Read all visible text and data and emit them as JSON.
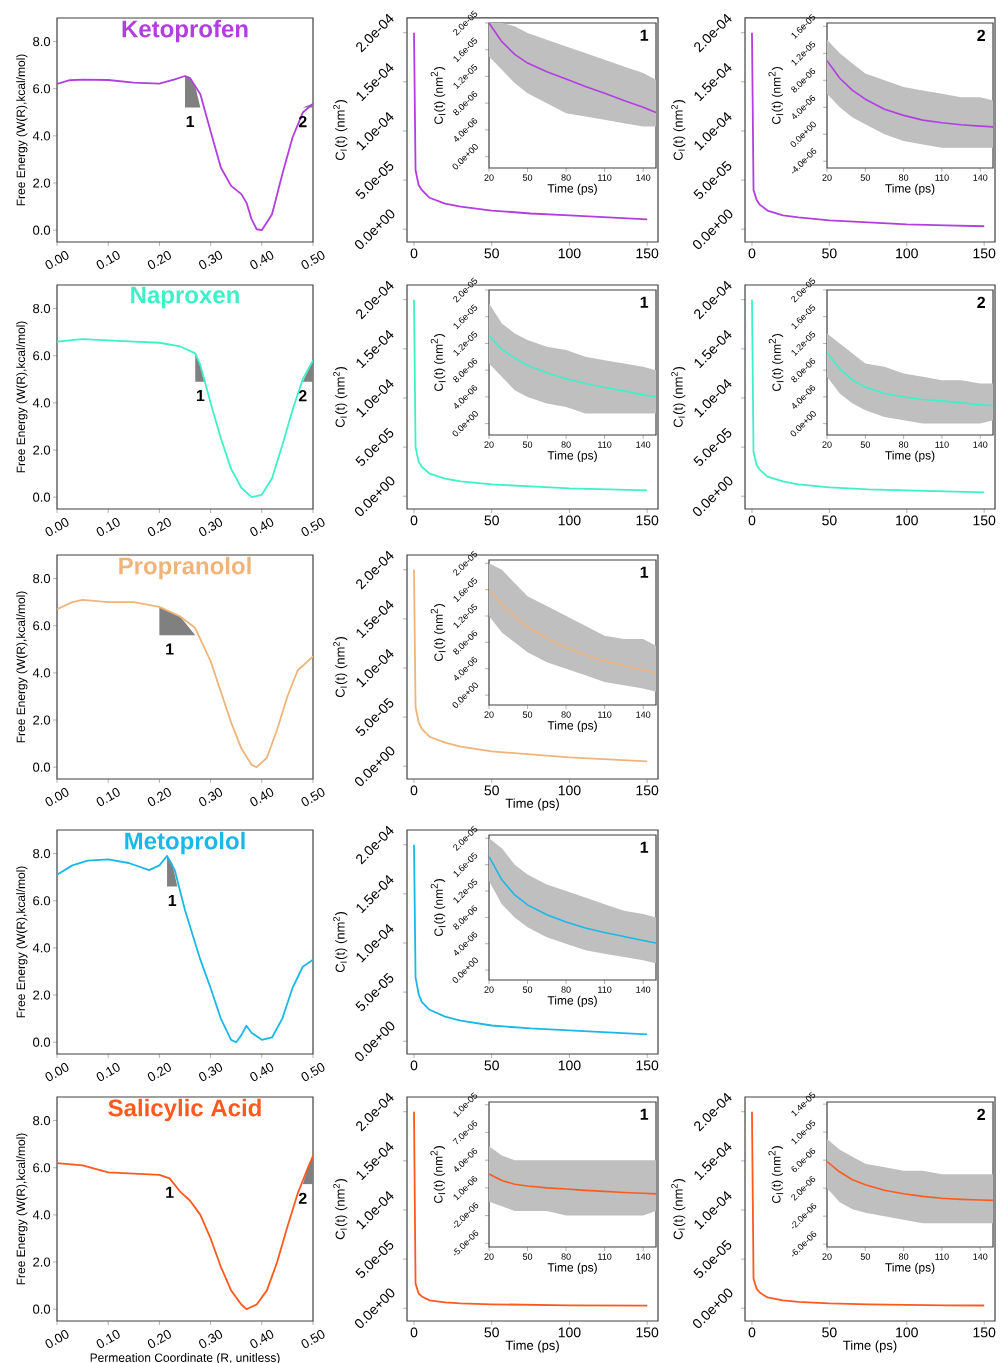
{
  "chart_data": [
    {
      "type": "line",
      "title": "Ketoprofen",
      "ylabel": "Free Energy (W(R),kcal/mol)",
      "xlim": [
        0,
        0.5
      ],
      "ylim": [
        -0.5,
        9.0
      ],
      "xticks": [
        {
          "value": 0,
          "label": "0.00"
        },
        {
          "value": 0.1,
          "label": "0.10"
        },
        {
          "value": 0.2,
          "label": "0.20"
        },
        {
          "value": 0.3,
          "label": "0.30"
        },
        {
          "value": 0.4,
          "label": "0.40"
        },
        {
          "value": 0.5,
          "label": "0.50"
        }
      ],
      "yticks": [
        {
          "value": 0,
          "label": "0.0"
        },
        {
          "value": 2,
          "label": "2.0"
        },
        {
          "value": 4,
          "label": "4.0"
        },
        {
          "value": 6,
          "label": "6.0"
        },
        {
          "value": 8,
          "label": "8.0"
        }
      ],
      "annotations": [
        {
          "text": "1",
          "x": 0.26,
          "y": 5.2
        },
        {
          "text": "2",
          "x": 0.48,
          "y": 5.2
        }
      ],
      "series": [
        {
          "type": "area",
          "color": "#808080",
          "x": [
            0.25,
            0.26,
            0.27,
            0.28,
            0.26,
            0.25
          ],
          "values": [
            6.54,
            6.45,
            6.1,
            5.2,
            5.2,
            5.2
          ]
        },
        {
          "type": "area",
          "color": "#808080",
          "x": [
            0.48,
            0.5,
            0.5
          ],
          "values": [
            5.2,
            5.37,
            5.2
          ]
        },
        {
          "color": "#b23ee0",
          "x": [
            0,
            0.025,
            0.05,
            0.1,
            0.15,
            0.2,
            0.23,
            0.25,
            0.26,
            0.28,
            0.3,
            0.32,
            0.34,
            0.36,
            0.37,
            0.38,
            0.39,
            0.4,
            0.42,
            0.44,
            0.46,
            0.48,
            0.5
          ],
          "values": [
            6.2,
            6.36,
            6.39,
            6.37,
            6.26,
            6.22,
            6.4,
            6.54,
            6.45,
            5.77,
            4.2,
            2.66,
            1.88,
            1.53,
            1.17,
            0.47,
            0.04,
            0,
            0.68,
            2.37,
            3.93,
            4.99,
            5.37
          ]
        }
      ]
    },
    {
      "type": "line",
      "ylabel": "C$_{I}$(t) (nm$^{2}$)",
      "xlim": [
        -4.5,
        157
      ],
      "ylim": [
        -1.3e-05,
        0.000215
      ],
      "xticks": [
        0,
        50,
        100,
        150
      ],
      "yticks": [
        {
          "value": 0,
          "label": "0.0e+00"
        },
        {
          "value": 5e-05,
          "label": "5.0e-05"
        },
        {
          "value": 0.0001,
          "label": "1.0e-04"
        },
        {
          "value": 0.00015,
          "label": "1.5e-04"
        },
        {
          "value": 0.0002,
          "label": "2.0e-04"
        }
      ],
      "series": [
        {
          "color": "#b23ee0",
          "x": [
            0,
            1,
            3,
            5,
            10,
            20,
            30,
            50,
            75,
            100,
            125,
            150
          ],
          "values": [
            0.0002,
            6e-05,
            4.5e-05,
            4e-05,
            3.2e-05,
            2.6e-05,
            2.3e-05,
            1.9e-05,
            1.6e-05,
            1.4e-05,
            1.2e-05,
            1e-05
          ]
        }
      ]
    },
    {
      "type": "line",
      "xlabel": "Time (ps)",
      "ylabel": "C$_{I}$(t) (nm$^{2}$)",
      "xlim": [
        20,
        150
      ],
      "ylim": [
        -1.7e-06,
        2e-05
      ],
      "xticks": [
        20,
        50,
        80,
        110,
        140
      ],
      "yticks": [
        {
          "value": 0,
          "label": "0.0e+00"
        },
        {
          "value": 4e-06,
          "label": "4.0e-06"
        },
        {
          "value": 8e-06,
          "label": "8.0e-06"
        },
        {
          "value": 1.2e-05,
          "label": "1.2e-05"
        },
        {
          "value": 1.6e-05,
          "label": "1.6e-05"
        },
        {
          "value": 2e-05,
          "label": "2.0e-05"
        }
      ],
      "annotations": [
        "1"
      ],
      "series": [
        {
          "color": "#b23ee0",
          "x": [
            20,
            30,
            40,
            50,
            65,
            80,
            95,
            110,
            125,
            140,
            150
          ],
          "values": [
            2e-05,
            1.72e-05,
            1.53e-05,
            1.4e-05,
            1.27e-05,
            1.16e-05,
            1.05e-05,
            9.5e-06,
            8.4e-06,
            7.4e-06,
            6.6e-06
          ],
          "lower": [
            1.5e-05,
            1.3e-05,
            1.1e-05,
            9.5e-06,
            8e-06,
            6.5e-06,
            6e-06,
            5.5e-06,
            5e-06,
            4.5e-06,
            4.5e-06
          ],
          "upper": [
            2e-05,
            2e-05,
            1.95e-05,
            1.85e-05,
            1.75e-05,
            1.65e-05,
            1.55e-05,
            1.45e-05,
            1.35e-05,
            1.25e-05,
            1.15e-05
          ]
        }
      ]
    },
    {
      "type": "line",
      "ylabel": "C$_{I}$(t) (nm$^{2}$)",
      "xlim": [
        -4.5,
        157
      ],
      "ylim": [
        -1.3e-05,
        0.000215
      ],
      "xticks": [
        0,
        50,
        100,
        150
      ],
      "yticks": [
        {
          "value": 0,
          "label": "0.0e+00"
        },
        {
          "value": 5e-05,
          "label": "5.0e-05"
        },
        {
          "value": 0.0001,
          "label": "1.0e-04"
        },
        {
          "value": 0.00015,
          "label": "1.5e-04"
        },
        {
          "value": 0.0002,
          "label": "2.0e-04"
        }
      ],
      "series": [
        {
          "color": "#b23ee0",
          "x": [
            0,
            1,
            3,
            5,
            10,
            20,
            30,
            50,
            75,
            100,
            125,
            150
          ],
          "values": [
            0.0002,
            4e-05,
            3e-05,
            2.5e-05,
            1.9e-05,
            1.4e-05,
            1.2e-05,
            9e-06,
            7e-06,
            5e-06,
            4e-06,
            3e-06
          ]
        }
      ]
    },
    {
      "type": "line",
      "xlabel": "Time (ps)",
      "ylabel": "C$_{I}$(t) (nm$^{2}$)",
      "xlim": [
        20,
        150
      ],
      "ylim": [
        -5e-06,
        1.65e-05
      ],
      "xticks": [
        20,
        50,
        80,
        110,
        140
      ],
      "yticks": [
        {
          "value": -4e-06,
          "label": "-4.0e-06"
        },
        {
          "value": 0,
          "label": "0.0e+00"
        },
        {
          "value": 4e-06,
          "label": "4.0e-06"
        },
        {
          "value": 8e-06,
          "label": "8.0e-06"
        },
        {
          "value": 1.2e-05,
          "label": "1.2e-05"
        },
        {
          "value": 1.6e-05,
          "label": "1.6e-05"
        }
      ],
      "annotations": [
        "2"
      ],
      "series": [
        {
          "color": "#b23ee0",
          "x": [
            20,
            30,
            40,
            50,
            65,
            80,
            95,
            110,
            125,
            140,
            150
          ],
          "values": [
            1.09e-05,
            8.3e-06,
            6.5e-06,
            5.2e-06,
            3.7e-06,
            2.8e-06,
            2.1e-06,
            1.7e-06,
            1.4e-06,
            1.2e-06,
            1.1e-06
          ],
          "lower": [
            6e-06,
            4e-06,
            2.5e-06,
            1.5e-06,
            0,
            -1e-06,
            -1.5e-06,
            -2e-06,
            -2e-06,
            -2e-06,
            -2e-06
          ],
          "upper": [
            1.4e-05,
            1.2e-05,
            1.05e-05,
            9e-06,
            8e-06,
            7e-06,
            6.5e-06,
            6e-06,
            5.5e-06,
            5.5e-06,
            5e-06
          ]
        }
      ]
    },
    {
      "type": "line",
      "title": "Naproxen",
      "ylabel": "Free Energy (W(R),kcal/mol)",
      "xlim": [
        0,
        0.5
      ],
      "ylim": [
        -0.5,
        9.0
      ],
      "xticks": [
        {
          "value": 0,
          "label": "0.00"
        },
        {
          "value": 0.1,
          "label": "0.10"
        },
        {
          "value": 0.2,
          "label": "0.20"
        },
        {
          "value": 0.3,
          "label": "0.30"
        },
        {
          "value": 0.4,
          "label": "0.40"
        },
        {
          "value": 0.5,
          "label": "0.50"
        }
      ],
      "yticks": [
        {
          "value": 0,
          "label": "0.0"
        },
        {
          "value": 2,
          "label": "2.0"
        },
        {
          "value": 4,
          "label": "4.0"
        },
        {
          "value": 6,
          "label": "6.0"
        },
        {
          "value": 8,
          "label": "8.0"
        }
      ],
      "annotations": [
        {
          "text": "1",
          "x": 0.28,
          "y": 4.9
        },
        {
          "text": "2",
          "x": 0.48,
          "y": 4.9
        }
      ],
      "series": [
        {
          "type": "area",
          "color": "#808080",
          "x": [
            0.27,
            0.28,
            0.29,
            0.28,
            0.27
          ],
          "values": [
            6.1,
            5.6,
            4.9,
            4.9,
            4.9
          ]
        },
        {
          "type": "area",
          "color": "#808080",
          "x": [
            0.48,
            0.5,
            0.5
          ],
          "values": [
            4.9,
            5.8,
            4.9
          ]
        },
        {
          "color": "#3ef0c8",
          "x": [
            0,
            0.05,
            0.1,
            0.15,
            0.2,
            0.24,
            0.27,
            0.28,
            0.3,
            0.32,
            0.34,
            0.36,
            0.38,
            0.4,
            0.42,
            0.44,
            0.46,
            0.48,
            0.5
          ],
          "values": [
            6.6,
            6.7,
            6.65,
            6.6,
            6.55,
            6.4,
            6.1,
            5.6,
            4.0,
            2.5,
            1.2,
            0.4,
            0.0,
            0.1,
            0.8,
            2.2,
            3.7,
            5.0,
            5.8
          ]
        }
      ]
    },
    {
      "type": "line",
      "ylabel": "C$_{I}$(t) (nm$^{2}$)",
      "xlim": [
        -4.5,
        157
      ],
      "ylim": [
        -1.3e-05,
        0.000215
      ],
      "xticks": [
        0,
        50,
        100,
        150
      ],
      "yticks": [
        {
          "value": 0,
          "label": "0.0e+00"
        },
        {
          "value": 5e-05,
          "label": "5.0e-05"
        },
        {
          "value": 0.0001,
          "label": "1.0e-04"
        },
        {
          "value": 0.00015,
          "label": "1.5e-04"
        },
        {
          "value": 0.0002,
          "label": "2.0e-04"
        }
      ],
      "series": [
        {
          "color": "#3ef0c8",
          "x": [
            0,
            1,
            3,
            5,
            10,
            20,
            30,
            50,
            75,
            100,
            125,
            150
          ],
          "values": [
            0.0002,
            5e-05,
            3.5e-05,
            3e-05,
            2.3e-05,
            1.8e-05,
            1.5e-05,
            1.2e-05,
            1e-05,
            8e-06,
            7e-06,
            6e-06
          ]
        }
      ]
    },
    {
      "type": "line",
      "xlabel": "Time (ps)",
      "ylabel": "C$_{I}$(t) (nm$^{2}$)",
      "xlim": [
        20,
        150
      ],
      "ylim": [
        -1.7e-06,
        2e-05
      ],
      "xticks": [
        20,
        50,
        80,
        110,
        140
      ],
      "yticks": [
        {
          "value": 0,
          "label": "0.0e+00"
        },
        {
          "value": 4e-06,
          "label": "4.0e-06"
        },
        {
          "value": 8e-06,
          "label": "8.0e-06"
        },
        {
          "value": 1.2e-05,
          "label": "1.2e-05"
        },
        {
          "value": 1.6e-05,
          "label": "1.6e-05"
        },
        {
          "value": 2e-05,
          "label": "2.0e-05"
        }
      ],
      "annotations": [
        "1"
      ],
      "series": [
        {
          "color": "#3ef0c8",
          "x": [
            20,
            30,
            40,
            50,
            65,
            80,
            95,
            110,
            125,
            140,
            150
          ],
          "values": [
            1.32e-05,
            1.11e-05,
            9.8e-06,
            8.7e-06,
            7.6e-06,
            6.7e-06,
            6e-06,
            5.4e-06,
            4.9e-06,
            4.3e-06,
            4e-06
          ],
          "lower": [
            9e-06,
            7e-06,
            5e-06,
            4e-06,
            3e-06,
            2.5e-06,
            1.5e-06,
            1.5e-06,
            1.5e-06,
            1.5e-06,
            1.5e-06
          ],
          "upper": [
            1.8e-05,
            1.5e-05,
            1.35e-05,
            1.25e-05,
            1.15e-05,
            1.1e-05,
            1e-05,
            9.5e-06,
            9e-06,
            8.5e-06,
            8e-06
          ]
        }
      ]
    },
    {
      "type": "line",
      "ylabel": "C$_{I}$(t) (nm$^{2}$)",
      "xlim": [
        -4.5,
        157
      ],
      "ylim": [
        -1.3e-05,
        0.000215
      ],
      "xticks": [
        0,
        50,
        100,
        150
      ],
      "yticks": [
        {
          "value": 0,
          "label": "0.0e+00"
        },
        {
          "value": 5e-05,
          "label": "5.0e-05"
        },
        {
          "value": 0.0001,
          "label": "1.0e-04"
        },
        {
          "value": 0.00015,
          "label": "1.5e-04"
        },
        {
          "value": 0.0002,
          "label": "2.0e-04"
        }
      ],
      "series": [
        {
          "color": "#3ef0c8",
          "x": [
            0,
            1,
            3,
            5,
            10,
            20,
            30,
            50,
            75,
            100,
            125,
            150
          ],
          "values": [
            0.0002,
            4.5e-05,
            3.2e-05,
            2.7e-05,
            2e-05,
            1.5e-05,
            1.2e-05,
            9e-06,
            7e-06,
            6e-06,
            5e-06,
            4e-06
          ]
        }
      ]
    },
    {
      "type": "line",
      "xlabel": "Time (ps)",
      "ylabel": "C$_{I}$(t) (nm$^{2}$)",
      "xlim": [
        20,
        150
      ],
      "ylim": [
        -1.7e-06,
        2e-05
      ],
      "xticks": [
        20,
        50,
        80,
        110,
        140
      ],
      "yticks": [
        {
          "value": 0,
          "label": "0.0e+00"
        },
        {
          "value": 4e-06,
          "label": "4.0e-06"
        },
        {
          "value": 8e-06,
          "label": "8.0e-06"
        },
        {
          "value": 1.2e-05,
          "label": "1.2e-05"
        },
        {
          "value": 1.6e-05,
          "label": "1.6e-05"
        },
        {
          "value": 2e-05,
          "label": "2.0e-05"
        }
      ],
      "annotations": [
        "2"
      ],
      "series": [
        {
          "color": "#3ef0c8",
          "x": [
            20,
            30,
            40,
            50,
            65,
            80,
            95,
            110,
            125,
            140,
            150
          ],
          "values": [
            1.06e-05,
            8.2e-06,
            6.5e-06,
            5.5e-06,
            4.5e-06,
            4e-06,
            3.6e-06,
            3.4e-06,
            3.1e-06,
            2.8e-06,
            2.7e-06
          ],
          "lower": [
            7e-06,
            4.5e-06,
            3e-06,
            2e-06,
            1e-06,
            5e-07,
            0,
            0,
            0,
            0,
            5e-07
          ],
          "upper": [
            1.35e-05,
            1.2e-05,
            1.05e-05,
            9e-06,
            8.5e-06,
            7.5e-06,
            7e-06,
            6.5e-06,
            6.5e-06,
            6e-06,
            6e-06
          ]
        }
      ]
    },
    {
      "type": "line",
      "title": "Propranolol",
      "ylabel": "Free Energy (W(R),kcal/mol)",
      "xlim": [
        0,
        0.5
      ],
      "ylim": [
        -0.5,
        9.0
      ],
      "xticks": [
        {
          "value": 0,
          "label": "0.00"
        },
        {
          "value": 0.1,
          "label": "0.10"
        },
        {
          "value": 0.2,
          "label": "0.20"
        },
        {
          "value": 0.3,
          "label": "0.30"
        },
        {
          "value": 0.4,
          "label": "0.40"
        },
        {
          "value": 0.5,
          "label": "0.50"
        }
      ],
      "yticks": [
        {
          "value": 0,
          "label": "0.0"
        },
        {
          "value": 2,
          "label": "2.0"
        },
        {
          "value": 4,
          "label": "4.0"
        },
        {
          "value": 6,
          "label": "6.0"
        },
        {
          "value": 8,
          "label": "8.0"
        }
      ],
      "annotations": [
        {
          "text": "1",
          "x": 0.22,
          "y": 5.6
        }
      ],
      "series": [
        {
          "type": "area",
          "color": "#808080",
          "x": [
            0.2,
            0.24,
            0.27,
            0.22,
            0.2
          ],
          "values": [
            6.8,
            6.4,
            5.6,
            5.6,
            5.6
          ]
        },
        {
          "color": "#f0b47a",
          "x": [
            0,
            0.03,
            0.05,
            0.1,
            0.15,
            0.2,
            0.24,
            0.27,
            0.3,
            0.32,
            0.34,
            0.36,
            0.38,
            0.39,
            0.41,
            0.43,
            0.45,
            0.47,
            0.5
          ],
          "values": [
            6.7,
            7.0,
            7.1,
            7.0,
            7.0,
            6.8,
            6.4,
            5.9,
            4.5,
            3.2,
            1.9,
            0.8,
            0.1,
            0.0,
            0.4,
            1.6,
            3.0,
            4.1,
            4.7
          ]
        }
      ]
    },
    {
      "type": "line",
      "xlabel": "Time (ps)",
      "ylabel": "C$_{I}$(t) (nm$^{2}$)",
      "xlim": [
        -4.5,
        157
      ],
      "ylim": [
        -1.3e-05,
        0.000215
      ],
      "xticks": [
        0,
        50,
        100,
        150
      ],
      "yticks": [
        {
          "value": 0,
          "label": "0.0e+00"
        },
        {
          "value": 5e-05,
          "label": "5.0e-05"
        },
        {
          "value": 0.0001,
          "label": "1.0e-04"
        },
        {
          "value": 0.00015,
          "label": "1.5e-04"
        },
        {
          "value": 0.0002,
          "label": "2.0e-04"
        }
      ],
      "series": [
        {
          "color": "#f0b47a",
          "x": [
            0,
            1,
            3,
            5,
            10,
            20,
            30,
            50,
            75,
            100,
            125,
            150
          ],
          "values": [
            0.0002,
            6e-05,
            4.5e-05,
            3.8e-05,
            3e-05,
            2.4e-05,
            2e-05,
            1.5e-05,
            1.2e-05,
            9e-06,
            7e-06,
            5e-06
          ]
        }
      ]
    },
    {
      "type": "line",
      "xlabel": "Time (ps)",
      "ylabel": "C$_{I}$(t) (nm$^{2}$)",
      "xlim": [
        20,
        150
      ],
      "ylim": [
        -1.5e-06,
        2.05e-05
      ],
      "xticks": [
        20,
        50,
        80,
        110,
        140
      ],
      "yticks": [
        {
          "value": 0,
          "label": "0.0e+00"
        },
        {
          "value": 4e-06,
          "label": "4.0e-06"
        },
        {
          "value": 8e-06,
          "label": "8.0e-06"
        },
        {
          "value": 1.2e-05,
          "label": "1.2e-05"
        },
        {
          "value": 1.6e-05,
          "label": "1.6e-05"
        },
        {
          "value": 2e-05,
          "label": "2.0e-05"
        }
      ],
      "annotations": [
        "1"
      ],
      "series": [
        {
          "color": "#f0b47a",
          "x": [
            20,
            30,
            40,
            50,
            65,
            80,
            95,
            110,
            125,
            140,
            150
          ],
          "values": [
            1.6e-05,
            1.37e-05,
            1.19e-05,
            1.04e-05,
            8.6e-06,
            7.2e-06,
            6.1e-06,
            5.2e-06,
            4.5e-06,
            3.8e-06,
            3.4e-06
          ],
          "lower": [
            1.2e-05,
            9.5e-06,
            8e-06,
            6.5e-06,
            5e-06,
            4e-06,
            3e-06,
            2e-06,
            1.5e-06,
            1e-06,
            5e-07
          ],
          "upper": [
            2e-05,
            1.9e-05,
            1.7e-05,
            1.5e-05,
            1.35e-05,
            1.2e-05,
            1.05e-05,
            9e-06,
            8.5e-06,
            8.5e-06,
            7.5e-06
          ]
        }
      ]
    },
    {
      "type": "line",
      "title": "Metoprolol",
      "ylabel": "Free Energy (W(R),kcal/mol)",
      "xlim": [
        0,
        0.5
      ],
      "ylim": [
        -0.5,
        9.0
      ],
      "xticks": [
        {
          "value": 0,
          "label": "0.00"
        },
        {
          "value": 0.1,
          "label": "0.10"
        },
        {
          "value": 0.2,
          "label": "0.20"
        },
        {
          "value": 0.3,
          "label": "0.30"
        },
        {
          "value": 0.4,
          "label": "0.40"
        },
        {
          "value": 0.5,
          "label": "0.50"
        }
      ],
      "yticks": [
        {
          "value": 0,
          "label": "0.0"
        },
        {
          "value": 2,
          "label": "2.0"
        },
        {
          "value": 4,
          "label": "4.0"
        },
        {
          "value": 6,
          "label": "6.0"
        },
        {
          "value": 8,
          "label": "8.0"
        }
      ],
      "annotations": [
        {
          "text": "1",
          "x": 0.225,
          "y": 6.6
        }
      ],
      "series": [
        {
          "type": "area",
          "color": "#808080",
          "x": [
            0.215,
            0.225,
            0.235,
            0.225,
            0.215
          ],
          "values": [
            7.9,
            7.6,
            6.6,
            6.6,
            6.6
          ]
        },
        {
          "color": "#1ab8e8",
          "x": [
            0,
            0.03,
            0.06,
            0.1,
            0.14,
            0.18,
            0.2,
            0.215,
            0.23,
            0.25,
            0.28,
            0.3,
            0.32,
            0.34,
            0.35,
            0.36,
            0.37,
            0.38,
            0.4,
            0.42,
            0.44,
            0.46,
            0.48,
            0.5
          ],
          "values": [
            7.1,
            7.5,
            7.7,
            7.75,
            7.6,
            7.3,
            7.5,
            7.9,
            7.3,
            5.6,
            3.5,
            2.3,
            1.0,
            0.1,
            0.0,
            0.3,
            0.7,
            0.4,
            0.1,
            0.2,
            1.0,
            2.3,
            3.2,
            3.5
          ]
        }
      ]
    },
    {
      "type": "line",
      "ylabel": "C$_{I}$(t) (nm$^{2}$)",
      "xlim": [
        -4.5,
        157
      ],
      "ylim": [
        -1.3e-05,
        0.000215
      ],
      "xticks": [
        0,
        50,
        100,
        150
      ],
      "yticks": [
        {
          "value": 0,
          "label": "0.0e+00"
        },
        {
          "value": 5e-05,
          "label": "5.0e-05"
        },
        {
          "value": 0.0001,
          "label": "1.0e-04"
        },
        {
          "value": 0.00015,
          "label": "1.5e-04"
        },
        {
          "value": 0.0002,
          "label": "2.0e-04"
        }
      ],
      "series": [
        {
          "color": "#1ab8e8",
          "x": [
            0,
            1,
            3,
            5,
            10,
            20,
            30,
            50,
            75,
            100,
            125,
            150
          ],
          "values": [
            0.0002,
            6.5e-05,
            4.8e-05,
            4e-05,
            3.2e-05,
            2.5e-05,
            2.1e-05,
            1.6e-05,
            1.3e-05,
            1.1e-05,
            9e-06,
            7e-06
          ]
        }
      ]
    },
    {
      "type": "line",
      "xlabel": "Time (ps)",
      "ylabel": "C$_{I}$(t) (nm$^{2}$)",
      "xlim": [
        20,
        150
      ],
      "ylim": [
        -1.5e-06,
        2.05e-05
      ],
      "xticks": [
        20,
        50,
        80,
        110,
        140
      ],
      "yticks": [
        {
          "value": 0,
          "label": "0.0e+00"
        },
        {
          "value": 4e-06,
          "label": "4.0e-06"
        },
        {
          "value": 8e-06,
          "label": "8.0e-06"
        },
        {
          "value": 1.2e-05,
          "label": "1.2e-05"
        },
        {
          "value": 1.6e-05,
          "label": "1.6e-05"
        },
        {
          "value": 2e-05,
          "label": "2.0e-05"
        }
      ],
      "annotations": [
        "1"
      ],
      "series": [
        {
          "color": "#1ab8e8",
          "x": [
            20,
            30,
            40,
            50,
            65,
            80,
            95,
            110,
            125,
            140,
            150
          ],
          "values": [
            1.72e-05,
            1.37e-05,
            1.14e-05,
            9.9e-06,
            8.4e-06,
            7.3e-06,
            6.4e-06,
            5.7e-06,
            5.1e-06,
            4.5e-06,
            4.1e-06
          ],
          "lower": [
            1.35e-05,
            1e-05,
            8e-06,
            6.5e-06,
            5e-06,
            4e-06,
            3e-06,
            2.5e-06,
            2e-06,
            1.5e-06,
            1e-06
          ],
          "upper": [
            2e-05,
            1.85e-05,
            1.6e-05,
            1.45e-05,
            1.3e-05,
            1.2e-05,
            1.1e-05,
            1e-05,
            9e-06,
            8.5e-06,
            8e-06
          ]
        }
      ]
    },
    {
      "type": "line",
      "title": "Salicylic Acid",
      "xlabel": "Permeation Coordinate (R, unitless)",
      "ylabel": "Free Energy (W(R),kcal/mol)",
      "xlim": [
        0,
        0.5
      ],
      "ylim": [
        -0.5,
        9.0
      ],
      "xticks": [
        {
          "value": 0,
          "label": "0.00"
        },
        {
          "value": 0.1,
          "label": "0.10"
        },
        {
          "value": 0.2,
          "label": "0.20"
        },
        {
          "value": 0.3,
          "label": "0.30"
        },
        {
          "value": 0.4,
          "label": "0.40"
        },
        {
          "value": 0.5,
          "label": "0.50"
        }
      ],
      "yticks": [
        {
          "value": 0,
          "label": "0.0"
        },
        {
          "value": 2,
          "label": "2.0"
        },
        {
          "value": 4,
          "label": "4.0"
        },
        {
          "value": 6,
          "label": "6.0"
        },
        {
          "value": 8,
          "label": "8.0"
        }
      ],
      "annotations": [
        {
          "text": "1",
          "x": 0.22,
          "y": 5.55
        },
        {
          "text": "2",
          "x": 0.48,
          "y": 5.3
        }
      ],
      "series": [
        {
          "type": "area",
          "color": "#808080",
          "x": [
            0.48,
            0.49,
            0.5,
            0.5
          ],
          "values": [
            5.3,
            6.0,
            6.5,
            5.3
          ]
        },
        {
          "color": "#ff5a1e",
          "x": [
            0,
            0.05,
            0.1,
            0.15,
            0.2,
            0.22,
            0.24,
            0.26,
            0.28,
            0.3,
            0.32,
            0.34,
            0.36,
            0.37,
            0.39,
            0.41,
            0.43,
            0.45,
            0.47,
            0.49,
            0.5
          ],
          "values": [
            6.2,
            6.1,
            5.8,
            5.75,
            5.7,
            5.55,
            5.0,
            4.6,
            4.0,
            3.0,
            1.8,
            0.8,
            0.2,
            0.0,
            0.2,
            0.8,
            2.0,
            3.5,
            4.9,
            6.0,
            6.5
          ]
        }
      ]
    },
    {
      "type": "line",
      "xlabel": "Time (ps)",
      "ylabel": "C$_{I}$(t) (nm$^{2}$)",
      "xlim": [
        -4.5,
        157
      ],
      "ylim": [
        -1.3e-05,
        0.000215
      ],
      "xticks": [
        0,
        50,
        100,
        150
      ],
      "yticks": [
        {
          "value": 0,
          "label": "0.0e+00"
        },
        {
          "value": 5e-05,
          "label": "5.0e-05"
        },
        {
          "value": 0.0001,
          "label": "1.0e-04"
        },
        {
          "value": 0.00015,
          "label": "1.5e-04"
        },
        {
          "value": 0.0002,
          "label": "2.0e-04"
        }
      ],
      "series": [
        {
          "color": "#ff5a1e",
          "x": [
            0,
            1,
            3,
            5,
            10,
            20,
            30,
            50,
            75,
            100,
            125,
            150
          ],
          "values": [
            0.0002,
            2.5e-05,
            1.5e-05,
            1.2e-05,
            8e-06,
            6e-06,
            5e-06,
            4e-06,
            3.5e-06,
            3e-06,
            2.8e-06,
            2.6e-06
          ]
        }
      ]
    },
    {
      "type": "line",
      "xlabel": "Time (ps)",
      "ylabel": "C$_{I}$(t) (nm$^{2}$)",
      "xlim": [
        20,
        150
      ],
      "ylim": [
        -5.4e-06,
        1.03e-05
      ],
      "xticks": [
        20,
        50,
        80,
        110,
        140
      ],
      "yticks": [
        {
          "value": -5e-06,
          "label": "-5.0e-06"
        },
        {
          "value": -2e-06,
          "label": "-2.0e-06"
        },
        {
          "value": 1e-06,
          "label": "1.0e-06"
        },
        {
          "value": 4e-06,
          "label": "4.0e-06"
        },
        {
          "value": 7e-06,
          "label": "7.0e-06"
        },
        {
          "value": 1e-05,
          "label": "1.0e-05"
        }
      ],
      "annotations": [
        "1"
      ],
      "series": [
        {
          "color": "#ff5a1e",
          "x": [
            20,
            30,
            40,
            50,
            65,
            80,
            95,
            110,
            125,
            140,
            150
          ],
          "values": [
            2.5e-06,
            1.8e-06,
            1.4e-06,
            1.2e-06,
            1e-06,
            8.8e-07,
            7.3e-07,
            6.2e-07,
            5e-07,
            4.2e-07,
            3.5e-07
          ],
          "lower": [
            -5e-07,
            -1e-06,
            -1.5e-06,
            -1.5e-06,
            -1.5e-06,
            -2e-06,
            -2e-06,
            -2e-06,
            -2e-06,
            -2e-06,
            -1.5e-06
          ],
          "upper": [
            5.5e-06,
            4.5e-06,
            4e-06,
            4e-06,
            4e-06,
            4e-06,
            4e-06,
            4e-06,
            4e-06,
            4e-06,
            4e-06
          ]
        }
      ]
    },
    {
      "type": "line",
      "xlabel": "Time (ps)",
      "ylabel": "C$_{I}$(t) (nm$^{2}$)",
      "xlim": [
        -4.5,
        157
      ],
      "ylim": [
        -1.3e-05,
        0.000215
      ],
      "xticks": [
        0,
        50,
        100,
        150
      ],
      "yticks": [
        {
          "value": 0,
          "label": "0.0e+00"
        },
        {
          "value": 5e-05,
          "label": "5.0e-05"
        },
        {
          "value": 0.0001,
          "label": "1.0e-04"
        },
        {
          "value": 0.00015,
          "label": "1.5e-04"
        },
        {
          "value": 0.0002,
          "label": "2.0e-04"
        }
      ],
      "series": [
        {
          "color": "#ff5a1e",
          "x": [
            0,
            1,
            3,
            5,
            10,
            20,
            30,
            50,
            75,
            100,
            125,
            150
          ],
          "values": [
            0.0002,
            3e-05,
            2e-05,
            1.6e-05,
            1.1e-05,
            8e-06,
            6.5e-06,
            5e-06,
            4e-06,
            3.5e-06,
            3e-06,
            2.8e-06
          ]
        }
      ]
    },
    {
      "type": "line",
      "xlabel": "Time (ps)",
      "ylabel": "C$_{I}$(t) (nm$^{2}$)",
      "xlim": [
        20,
        150
      ],
      "ylim": [
        -6.4e-06,
        1.43e-05
      ],
      "xticks": [
        20,
        50,
        80,
        110,
        140
      ],
      "yticks": [
        {
          "value": -6e-06,
          "label": "-6.0e-06"
        },
        {
          "value": -2e-06,
          "label": "-2.0e-06"
        },
        {
          "value": 2e-06,
          "label": "2.0e-06"
        },
        {
          "value": 6e-06,
          "label": "6.0e-06"
        },
        {
          "value": 1e-05,
          "label": "1.0e-05"
        },
        {
          "value": 1.4e-05,
          "label": "1.4e-05"
        }
      ],
      "annotations": [
        "2"
      ],
      "series": [
        {
          "color": "#ff5a1e",
          "x": [
            20,
            30,
            40,
            50,
            65,
            80,
            95,
            110,
            125,
            140,
            150
          ],
          "values": [
            5.8e-06,
            4.3e-06,
            3.2e-06,
            2.5e-06,
            1.7e-06,
            1.2e-06,
            8.3e-07,
            5.6e-07,
            4e-07,
            3e-07,
            2.5e-07
          ],
          "lower": [
            2e-06,
            0,
            -1e-06,
            -1.5e-06,
            -2e-06,
            -2.5e-06,
            -3e-06,
            -3e-06,
            -3e-06,
            -3e-06,
            -3e-06
          ],
          "upper": [
            9e-06,
            7.5e-06,
            6.5e-06,
            5.5e-06,
            5e-06,
            4.5e-06,
            4.5e-06,
            4e-06,
            4e-06,
            4e-06,
            4e-06
          ]
        }
      ]
    }
  ]
}
